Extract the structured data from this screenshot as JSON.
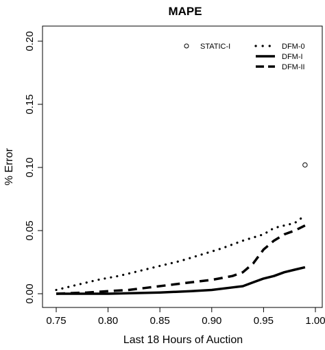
{
  "chart_data": {
    "type": "line",
    "title": "MAPE",
    "xlabel": "Last 18 Hours of Auction",
    "ylabel": "% Error",
    "xlim": [
      0.75,
      1.0
    ],
    "ylim": [
      0.0,
      0.2
    ],
    "x_ticks": [
      "0.75",
      "0.80",
      "0.85",
      "0.90",
      "0.95",
      "1.00"
    ],
    "y_ticks": [
      "0.00",
      "0.05",
      "0.10",
      "0.15",
      "0.20"
    ],
    "grid": false,
    "legend_position": "top-right",
    "series": [
      {
        "name": "STATIC-I",
        "style": "circle",
        "color": "#000000",
        "points": [
          [
            0.99,
            0.102
          ]
        ]
      },
      {
        "name": "DFM-0",
        "style": "dotted",
        "color": "#000000",
        "points": [
          [
            0.75,
            0.003
          ],
          [
            0.77,
            0.007
          ],
          [
            0.79,
            0.011
          ],
          [
            0.81,
            0.014
          ],
          [
            0.83,
            0.018
          ],
          [
            0.85,
            0.022
          ],
          [
            0.87,
            0.026
          ],
          [
            0.89,
            0.031
          ],
          [
            0.91,
            0.036
          ],
          [
            0.93,
            0.042
          ],
          [
            0.95,
            0.047
          ],
          [
            0.96,
            0.052
          ],
          [
            0.97,
            0.054
          ],
          [
            0.98,
            0.056
          ],
          [
            0.99,
            0.062
          ]
        ]
      },
      {
        "name": "DFM-I",
        "style": "solid",
        "color": "#000000",
        "points": [
          [
            0.75,
            0.0
          ],
          [
            0.8,
            0.0
          ],
          [
            0.85,
            0.001
          ],
          [
            0.88,
            0.002
          ],
          [
            0.9,
            0.003
          ],
          [
            0.92,
            0.005
          ],
          [
            0.93,
            0.006
          ],
          [
            0.94,
            0.009
          ],
          [
            0.95,
            0.012
          ],
          [
            0.96,
            0.014
          ],
          [
            0.97,
            0.017
          ],
          [
            0.98,
            0.019
          ],
          [
            0.99,
            0.021
          ]
        ]
      },
      {
        "name": "DFM-II",
        "style": "dashed",
        "color": "#000000",
        "points": [
          [
            0.75,
            0.0
          ],
          [
            0.78,
            0.001
          ],
          [
            0.8,
            0.002
          ],
          [
            0.82,
            0.003
          ],
          [
            0.84,
            0.005
          ],
          [
            0.86,
            0.007
          ],
          [
            0.88,
            0.009
          ],
          [
            0.9,
            0.011
          ],
          [
            0.92,
            0.014
          ],
          [
            0.93,
            0.017
          ],
          [
            0.94,
            0.024
          ],
          [
            0.95,
            0.035
          ],
          [
            0.96,
            0.042
          ],
          [
            0.97,
            0.047
          ],
          [
            0.98,
            0.05
          ],
          [
            0.99,
            0.054
          ]
        ]
      }
    ]
  }
}
